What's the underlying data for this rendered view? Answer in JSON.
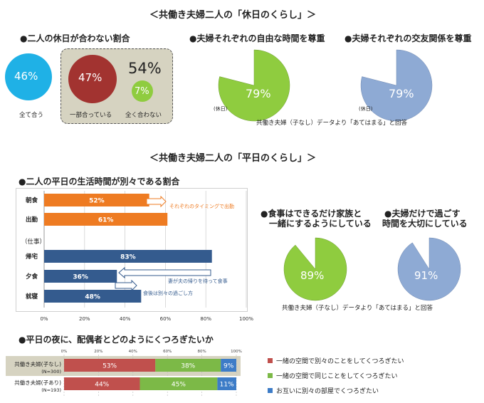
{
  "header1": "＜共働き夫婦二人の「休日のくらし」＞",
  "header2": "＜共働き夫婦二人の「平日のくらし」＞",
  "holiday": {
    "match_title": "●二人の休日が合わない割合",
    "all_match_value": "46%",
    "all_match_label": "全て合う",
    "partial_value": "47%",
    "partial_label": "一部合っている",
    "none_value": "7%",
    "none_label": "全く合わない",
    "total_value": "54%",
    "time_title": "●夫婦それぞれの自由な時間を尊重",
    "time_value": "79%",
    "friends_title": "●夫婦それぞれの交友関係を尊重",
    "friends_value": "79%",
    "pie_tag": "(休日)",
    "source": "共働き夫婦（子なし）データより「あてはまる」と回答"
  },
  "weekday": {
    "bar_title": "●二人の平日の生活時間が別々である割合",
    "work_group": "（仕事）",
    "annot_timing": "それぞれのタイミングで出勤",
    "annot_wait": "妻が夫の帰りを待って食事",
    "annot_separate": "食後は別々の過ごし方",
    "meal_title_1": "●食事はできるだけ家族と",
    "meal_title_2": "一緒にするようにしている",
    "meal_value": "89%",
    "alone_title_1": "●夫婦だけで過ごす",
    "alone_title_2": "時間を大切にしている",
    "alone_value": "91%",
    "source": "共働き夫婦（子なし）データより「あてはまる」と回答",
    "night_title": "●平日の夜に、配偶者とどのようにくつろぎたいか"
  },
  "colors": {
    "cyan": "#1fb1e6",
    "darkred": "#a23330",
    "green": "#8fcc3f",
    "steel": "#8eaad4",
    "orange": "#ee7b22",
    "navy": "#345b8e",
    "red": "#c0504d",
    "green2": "#7cb947",
    "blue": "#3d7cc7",
    "panel": "#d6d3c1"
  },
  "chart_data": [
    {
      "type": "bar",
      "orientation": "horizontal",
      "categories": [
        "朝食",
        "出勤",
        "帰宅",
        "夕食",
        "就寝"
      ],
      "values": [
        52,
        61,
        83,
        36,
        48
      ],
      "labels": [
        "52%",
        "61%",
        "83%",
        "36%",
        "48%"
      ],
      "ticks": [
        "0%",
        "20%",
        "40%",
        "60%",
        "80%",
        "100%"
      ],
      "xlim": [
        0,
        100
      ],
      "grid": true
    },
    {
      "type": "bar",
      "orientation": "horizontal",
      "stacked": true,
      "categories": [
        "共働き夫婦(子なし)",
        "共働き夫婦(子あり)"
      ],
      "sample_sizes": [
        "(N=300)",
        "(N=193)"
      ],
      "series": [
        {
          "name": "一緒の空間で別々のことをしてくつろぎたい",
          "values": [
            53,
            44
          ],
          "labels": [
            "53%",
            "44%"
          ],
          "color": "#c0504d"
        },
        {
          "name": "一緒の空間で同じことをしてくつろぎたい",
          "values": [
            38,
            45
          ],
          "labels": [
            "38%",
            "45%"
          ],
          "color": "#7cb947"
        },
        {
          "name": "お互いに別々の部屋でくつろぎたい",
          "values": [
            9,
            11
          ],
          "labels": [
            "9%",
            "11%"
          ],
          "color": "#3d7cc7"
        }
      ],
      "ticks": [
        "0%",
        "20%",
        "40%",
        "60%",
        "80%",
        "100%"
      ],
      "xlim": [
        0,
        100
      ],
      "legend": "right"
    }
  ]
}
